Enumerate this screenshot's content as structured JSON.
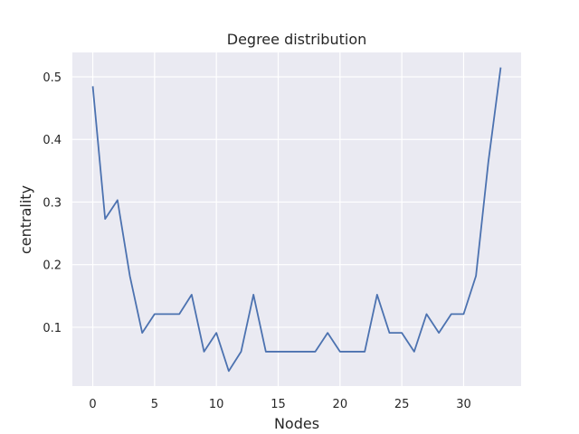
{
  "chart_data": {
    "type": "line",
    "title": "Degree distribution",
    "xlabel": "Nodes",
    "ylabel": "centrality",
    "xlim": [
      -1.65,
      34.65
    ],
    "ylim": [
      0.006,
      0.539
    ],
    "x_ticks": [
      0,
      5,
      10,
      15,
      20,
      25,
      30
    ],
    "y_ticks": [
      0.1,
      0.2,
      0.3,
      0.4,
      0.5
    ],
    "grid": true,
    "background": "#eaeaf2",
    "series": [
      {
        "color": "#4c72b0",
        "x": [
          0,
          1,
          2,
          3,
          4,
          5,
          6,
          7,
          8,
          9,
          10,
          11,
          12,
          13,
          14,
          15,
          16,
          17,
          18,
          19,
          20,
          21,
          22,
          23,
          24,
          25,
          26,
          27,
          28,
          29,
          30,
          31,
          32,
          33
        ],
        "values": [
          0.485,
          0.273,
          0.303,
          0.182,
          0.091,
          0.121,
          0.121,
          0.121,
          0.152,
          0.061,
          0.091,
          0.03,
          0.061,
          0.152,
          0.061,
          0.061,
          0.061,
          0.061,
          0.061,
          0.091,
          0.061,
          0.061,
          0.061,
          0.152,
          0.091,
          0.091,
          0.061,
          0.121,
          0.091,
          0.121,
          0.121,
          0.182,
          0.364,
          0.515
        ]
      }
    ]
  }
}
